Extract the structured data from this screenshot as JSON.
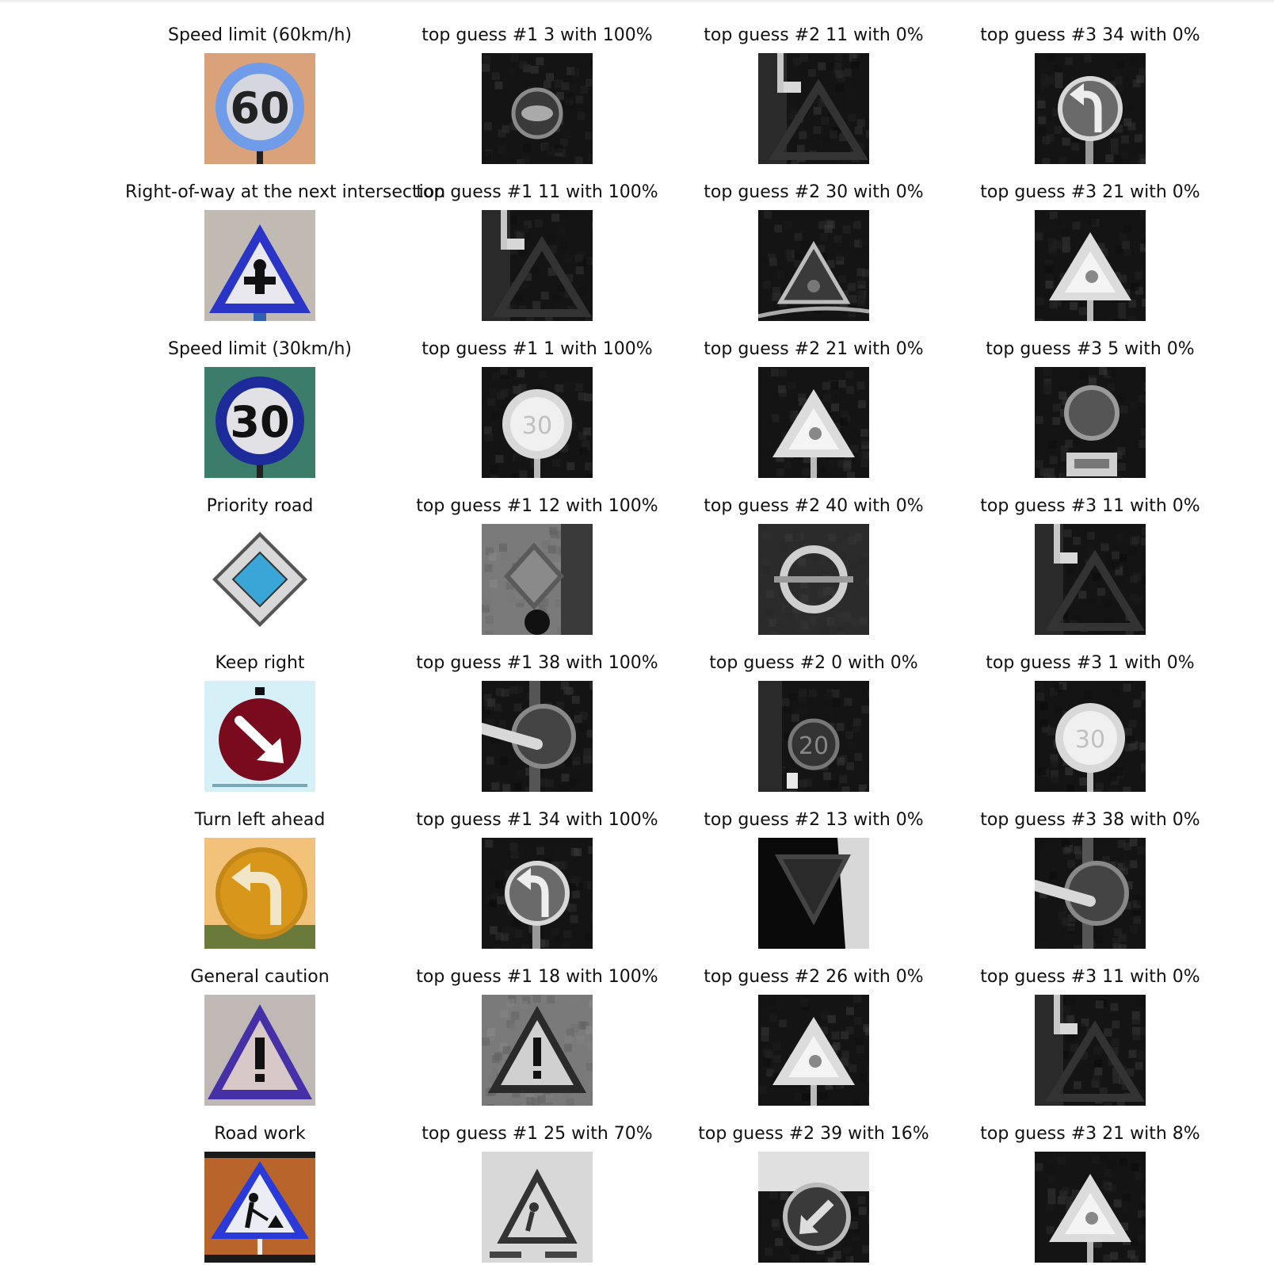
{
  "rows": [
    {
      "label": "Speed limit (60km/h)",
      "sign": {
        "kind": "speed",
        "number": "60",
        "bg": "#d9a27a",
        "ring": "#6f9be8",
        "face": "#d6d6de",
        "text": "#222222"
      },
      "guesses": [
        {
          "caption": "top guess #1 3 with 100%",
          "thumb": "circle-dark"
        },
        {
          "caption": "top guess #2 11 with 0%",
          "thumb": "triangle-dark"
        },
        {
          "caption": "top guess #3 34 with 0%",
          "thumb": "turn-left"
        }
      ]
    },
    {
      "label": "Right-of-way at the next intersection",
      "sign": {
        "kind": "triangle-cross",
        "bg": "#c9c0b8",
        "border": "#2a35c8",
        "face": "#e8e8ee"
      },
      "guesses": [
        {
          "caption": "top guess #1 11 with 100%",
          "thumb": "triangle-dark"
        },
        {
          "caption": "top guess #2 30 with 0%",
          "thumb": "triangle-small"
        },
        {
          "caption": "top guess #3 21 with 0%",
          "thumb": "triangle-bright"
        }
      ]
    },
    {
      "label": "Speed limit (30km/h)",
      "sign": {
        "kind": "speed",
        "number": "30",
        "bg": "#3b7d6a",
        "ring": "#1d2a9a",
        "face": "#e2e2e6",
        "text": "#111111"
      },
      "guesses": [
        {
          "caption": "top guess #1 1 with 100%",
          "thumb": "circle-bright"
        },
        {
          "caption": "top guess #2 21 with 0%",
          "thumb": "triangle-bright"
        },
        {
          "caption": "top guess #3 5 with 0%",
          "thumb": "circle-plate"
        }
      ]
    },
    {
      "label": "Priority road",
      "sign": {
        "kind": "diamond",
        "bg": "#ffffff",
        "border": "#555555",
        "face": "#d8d8d8",
        "inner": "#3aa6d8"
      },
      "guesses": [
        {
          "caption": "top guess #1 12 with 100%",
          "thumb": "diamond-gray"
        },
        {
          "caption": "top guess #2 40 with 0%",
          "thumb": "roundabout"
        },
        {
          "caption": "top guess #3 11 with 0%",
          "thumb": "triangle-dark"
        }
      ]
    },
    {
      "label": "Keep right",
      "sign": {
        "kind": "keep-right",
        "bg": "#d6f0f8",
        "circle": "#7a0a1e",
        "arrow": "#ffffff"
      },
      "guesses": [
        {
          "caption": "top guess #1 38 with 100%",
          "thumb": "keep-right"
        },
        {
          "caption": "top guess #2 0 with 0%",
          "thumb": "circle-20"
        },
        {
          "caption": "top guess #3 1 with 0%",
          "thumb": "circle-bright"
        }
      ]
    },
    {
      "label": "Turn left ahead",
      "sign": {
        "kind": "turn-left",
        "bg": "#f2c27a",
        "circle": "#d8961a",
        "arrow": "#f2e6c8"
      },
      "guesses": [
        {
          "caption": "top guess #1 34 with 100%",
          "thumb": "turn-left"
        },
        {
          "caption": "top guess #2 13 with 0%",
          "thumb": "yield"
        },
        {
          "caption": "top guess #3 38 with 0%",
          "thumb": "keep-right"
        }
      ]
    },
    {
      "label": "General caution",
      "sign": {
        "kind": "caution",
        "bg": "#d4d4d8",
        "border": "#4630a8",
        "face": "#d8c8c8"
      },
      "guesses": [
        {
          "caption": "top guess #1 18 with 100%",
          "thumb": "caution"
        },
        {
          "caption": "top guess #2 26 with 0%",
          "thumb": "triangle-bright"
        },
        {
          "caption": "top guess #3 11 with 0%",
          "thumb": "triangle-dark"
        }
      ]
    },
    {
      "label": "Road work",
      "sign": {
        "kind": "roadwork",
        "bg": "#b8642a",
        "border": "#2a3ad8",
        "face": "#ececf4"
      },
      "guesses": [
        {
          "caption": "top guess #1 25 with 70%",
          "thumb": "roadwork-gray"
        },
        {
          "caption": "top guess #2 39 with 16%",
          "thumb": "keep-left"
        },
        {
          "caption": "top guess #3 21 with 8%",
          "thumb": "triangle-bright"
        }
      ]
    }
  ]
}
